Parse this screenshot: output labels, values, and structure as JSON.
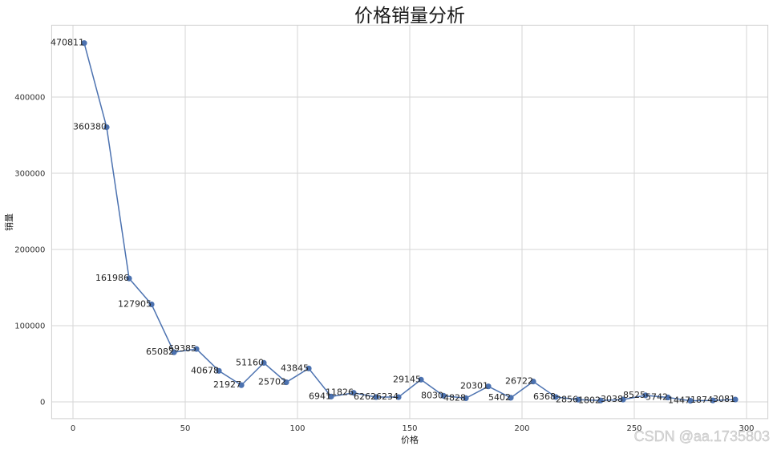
{
  "chart_data": {
    "type": "line",
    "title": "价格销量分析",
    "xlabel": "价格",
    "ylabel": "销量",
    "x": [
      5,
      15,
      25,
      35,
      45,
      55,
      65,
      75,
      85,
      95,
      105,
      115,
      125,
      135,
      145,
      155,
      165,
      175,
      185,
      195,
      205,
      215,
      225,
      235,
      245,
      255,
      265,
      275,
      285,
      295
    ],
    "y": [
      470811,
      360380,
      161986,
      127905,
      65082,
      69385,
      40678,
      21927,
      51160,
      25702,
      43845,
      6941,
      11826,
      6262,
      6234,
      29145,
      8030,
      4828,
      20301,
      5402,
      26722,
      6368,
      2856,
      1802,
      3038,
      8525,
      5742,
      1447,
      1874,
      3081
    ],
    "xlim": [
      -9.5,
      309.5
    ],
    "ylim": [
      -22021,
      494279
    ],
    "xticks": [
      0,
      50,
      100,
      150,
      200,
      250,
      300
    ],
    "yticks": [
      0,
      100000,
      200000,
      300000,
      400000
    ],
    "grid": true,
    "marker": "circle",
    "line_color": "#4c72b0"
  },
  "watermark": "CSDN @aa.1735803"
}
